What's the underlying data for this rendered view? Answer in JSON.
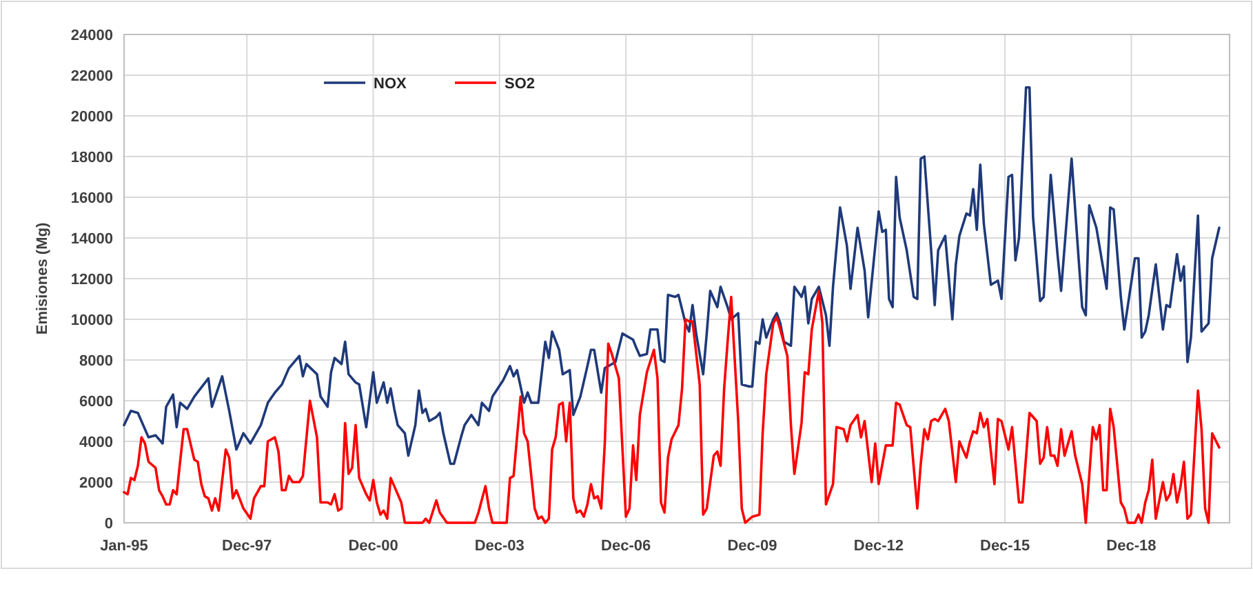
{
  "chart_data": {
    "type": "line",
    "ylabel": "Emisiones (Mg)",
    "xlim": [
      "1995-01",
      "2021-04"
    ],
    "ylim": [
      0,
      24000
    ],
    "xticks": [
      {
        "value": "1995-01",
        "label": "Jan-95"
      },
      {
        "value": "1997-12",
        "label": "Dec-97"
      },
      {
        "value": "2000-12",
        "label": "Dec-00"
      },
      {
        "value": "2003-12",
        "label": "Dec-03"
      },
      {
        "value": "2006-12",
        "label": "Dec-06"
      },
      {
        "value": "2009-12",
        "label": "Dec-09"
      },
      {
        "value": "2012-12",
        "label": "Dec-12"
      },
      {
        "value": "2015-12",
        "label": "Dec-15"
      },
      {
        "value": "2018-12",
        "label": "Dec-18"
      }
    ],
    "yticks": [
      0,
      2000,
      4000,
      6000,
      8000,
      10000,
      12000,
      14000,
      16000,
      18000,
      20000,
      22000,
      24000
    ],
    "grid": true,
    "legend": "top left",
    "marker": "none",
    "line_style": "solid",
    "series": [
      {
        "name": "NOX",
        "color": "#1f3a7a",
        "x": [
          "1995-01",
          "1995-03",
          "1995-05",
          "1995-08",
          "1995-10",
          "1995-12",
          "1996-01",
          "1996-03",
          "1996-04",
          "1996-05",
          "1996-07",
          "1996-09",
          "1997-01",
          "1997-02",
          "1997-05",
          "1997-07",
          "1997-09",
          "1997-11",
          "1998-01",
          "1998-04",
          "1998-06",
          "1998-08",
          "1998-10",
          "1998-12",
          "1999-03",
          "1999-04",
          "1999-05",
          "1999-08",
          "1999-09",
          "1999-11",
          "1999-12",
          "2000-01",
          "2000-03",
          "2000-04",
          "2000-05",
          "2000-07",
          "2000-08",
          "2000-10",
          "2000-12",
          "2001-01",
          "2001-03",
          "2001-04",
          "2001-05",
          "2001-06",
          "2001-07",
          "2001-09",
          "2001-10",
          "2001-12",
          "2002-01",
          "2002-02",
          "2002-03",
          "2002-04",
          "2002-06",
          "2002-07",
          "2002-08",
          "2002-10",
          "2002-11",
          "2003-01",
          "2003-02",
          "2003-04",
          "2003-06",
          "2003-07",
          "2003-09",
          "2003-10",
          "2004-01",
          "2004-03",
          "2004-04",
          "2004-05",
          "2004-07",
          "2004-08",
          "2004-09",
          "2004-11",
          "2005-01",
          "2005-02",
          "2005-03",
          "2005-05",
          "2005-06",
          "2005-08",
          "2005-09",
          "2005-11",
          "2006-01",
          "2006-02",
          "2006-03",
          "2006-05",
          "2006-06",
          "2006-09",
          "2006-11",
          "2007-02",
          "2007-03",
          "2007-04",
          "2007-06",
          "2007-07",
          "2007-09",
          "2007-10",
          "2007-11",
          "2007-12",
          "2008-02",
          "2008-03",
          "2008-05",
          "2008-06",
          "2008-07",
          "2008-08",
          "2008-10",
          "2008-11",
          "2008-12",
          "2009-02",
          "2009-03",
          "2009-05",
          "2009-06",
          "2009-08",
          "2009-09",
          "2009-11",
          "2009-12",
          "2010-01",
          "2010-02",
          "2010-03",
          "2010-04",
          "2010-06",
          "2010-07",
          "2010-08",
          "2010-09",
          "2010-11",
          "2010-12",
          "2011-02",
          "2011-03",
          "2011-04",
          "2011-05",
          "2011-07",
          "2011-09",
          "2011-10",
          "2011-11",
          "2012-01",
          "2012-03",
          "2012-04",
          "2012-06",
          "2012-08",
          "2012-09",
          "2012-12",
          "2013-01",
          "2013-02",
          "2013-03",
          "2013-04",
          "2013-05",
          "2013-06",
          "2013-08",
          "2013-10",
          "2013-11",
          "2013-12",
          "2014-01",
          "2014-03",
          "2014-04",
          "2014-05",
          "2014-07",
          "2014-09",
          "2014-10",
          "2014-11",
          "2015-01",
          "2015-02",
          "2015-03",
          "2015-04",
          "2015-05",
          "2015-06",
          "2015-08",
          "2015-10",
          "2015-11",
          "2016-01",
          "2016-02",
          "2016-03",
          "2016-04",
          "2016-06",
          "2016-07",
          "2016-08",
          "2016-10",
          "2016-11",
          "2017-01",
          "2017-03",
          "2017-04",
          "2017-07",
          "2017-09",
          "2017-10",
          "2017-11",
          "2017-12",
          "2018-02",
          "2018-05",
          "2018-06",
          "2018-07",
          "2018-09",
          "2018-10",
          "2019-01",
          "2019-02",
          "2019-03",
          "2019-04",
          "2019-05",
          "2019-07",
          "2019-09",
          "2019-10",
          "2019-11",
          "2020-01",
          "2020-02",
          "2020-03",
          "2020-04",
          "2020-05",
          "2020-07",
          "2020-08",
          "2020-10",
          "2020-11",
          "2021-01"
        ],
        "values": [
          4800,
          5500,
          5400,
          4200,
          4300,
          3900,
          5700,
          6300,
          4700,
          5900,
          5600,
          6200,
          7100,
          5700,
          7200,
          5500,
          3600,
          4400,
          3900,
          4800,
          5900,
          6400,
          6800,
          7600,
          8200,
          7200,
          7800,
          7300,
          6200,
          5700,
          7400,
          8100,
          7800,
          8900,
          7300,
          6900,
          6800,
          4700,
          7400,
          5900,
          6900,
          5900,
          6600,
          5600,
          4800,
          4400,
          3300,
          4800,
          6500,
          5400,
          5600,
          5000,
          5200,
          5400,
          4400,
          2900,
          2900,
          4200,
          4800,
          5300,
          4800,
          5900,
          5500,
          6200,
          7000,
          7700,
          7200,
          7500,
          5900,
          6400,
          5900,
          5900,
          8900,
          8100,
          9400,
          8500,
          7300,
          7500,
          5300,
          6200,
          7700,
          8500,
          8500,
          6400,
          7600,
          7900,
          9300,
          9000,
          8600,
          8200,
          8300,
          9500,
          9500,
          8000,
          7900,
          11200,
          11100,
          11200,
          9800,
          9400,
          10700,
          9300,
          7300,
          9300,
          11400,
          10600,
          11600,
          10600,
          10000,
          10300,
          6800,
          6700,
          6700,
          8900,
          8800,
          10000,
          9100,
          10000,
          10300,
          9800,
          8900,
          8700,
          11600,
          11100,
          11600,
          9800,
          11000,
          11600,
          10200,
          8700,
          11600,
          15500,
          13600,
          11500,
          14500,
          12400,
          10100,
          15300,
          14300,
          14400,
          11000,
          10600,
          17000,
          15000,
          13400,
          11100,
          11000,
          17900,
          18000,
          13400,
          10700,
          13400,
          14100,
          10000,
          12700,
          14100,
          15200,
          15100,
          16400,
          14400,
          17600,
          14700,
          11700,
          11900,
          11000,
          17000,
          17100,
          12900,
          14000,
          21400,
          21400,
          15000,
          10900,
          11100,
          17100,
          13200,
          11400,
          17900,
          12900,
          10600,
          10200,
          15600,
          14500,
          11500,
          15500,
          15400,
          11100,
          9500,
          13000,
          13000,
          9100,
          9400,
          10200,
          12700,
          9500,
          10700,
          10600,
          13200,
          11900,
          12600,
          7900,
          9100,
          15100,
          9400,
          9800,
          13000,
          14500
        ]
      },
      {
        "name": "SO2",
        "color": "#ff0000",
        "x": [
          "1995-01",
          "1995-02",
          "1995-03",
          "1995-04",
          "1995-05",
          "1995-06",
          "1995-07",
          "1995-08",
          "1995-10",
          "1995-11",
          "1995-12",
          "1996-01",
          "1996-02",
          "1996-03",
          "1996-04",
          "1996-05",
          "1996-06",
          "1996-07",
          "1996-09",
          "1996-10",
          "1996-11",
          "1996-12",
          "1997-01",
          "1997-02",
          "1997-03",
          "1997-04",
          "1997-06",
          "1997-07",
          "1997-08",
          "1997-09",
          "1997-11",
          "1998-01",
          "1998-02",
          "1998-04",
          "1998-05",
          "1998-06",
          "1998-08",
          "1998-09",
          "1998-10",
          "1998-11",
          "1998-12",
          "1999-01",
          "1999-03",
          "1999-04",
          "1999-06",
          "1999-08",
          "1999-09",
          "1999-11",
          "1999-12",
          "2000-01",
          "2000-02",
          "2000-03",
          "2000-04",
          "2000-05",
          "2000-06",
          "2000-07",
          "2000-08",
          "2000-10",
          "2000-11",
          "2000-12",
          "2001-01",
          "2001-02",
          "2001-03",
          "2001-04",
          "2001-05",
          "2001-06",
          "2001-08",
          "2001-09",
          "2002-02",
          "2002-03",
          "2002-04",
          "2002-06",
          "2002-07",
          "2002-09",
          "2003-05",
          "2003-06",
          "2003-08",
          "2003-09",
          "2003-10",
          "2004-02",
          "2004-03",
          "2004-04",
          "2004-06",
          "2004-07",
          "2004-08",
          "2004-10",
          "2004-11",
          "2004-12",
          "2005-01",
          "2005-02",
          "2005-03",
          "2005-04",
          "2005-05",
          "2005-06",
          "2005-07",
          "2005-08",
          "2005-09",
          "2005-10",
          "2005-11",
          "2005-12",
          "2006-01",
          "2006-02",
          "2006-03",
          "2006-04",
          "2006-05",
          "2006-06",
          "2006-07",
          "2006-08",
          "2006-10",
          "2006-12",
          "2007-01",
          "2007-02",
          "2007-03",
          "2007-04",
          "2007-06",
          "2007-08",
          "2007-09",
          "2007-10",
          "2007-11",
          "2007-12",
          "2008-01",
          "2008-03",
          "2008-04",
          "2008-05",
          "2008-06",
          "2008-07",
          "2008-09",
          "2008-10",
          "2008-11",
          "2009-01",
          "2009-02",
          "2009-03",
          "2009-04",
          "2009-05",
          "2009-06",
          "2009-08",
          "2009-09",
          "2009-10",
          "2009-12",
          "2010-02",
          "2010-03",
          "2010-04",
          "2010-06",
          "2010-07",
          "2010-08",
          "2010-10",
          "2010-11",
          "2010-12",
          "2011-02",
          "2011-03",
          "2011-04",
          "2011-05",
          "2011-07",
          "2011-08",
          "2011-09",
          "2011-11",
          "2011-12",
          "2012-02",
          "2012-03",
          "2012-04",
          "2012-06",
          "2012-07",
          "2012-08",
          "2012-10",
          "2012-11",
          "2012-12",
          "2013-02",
          "2013-04",
          "2013-05",
          "2013-06",
          "2013-08",
          "2013-09",
          "2013-11",
          "2013-12",
          "2014-01",
          "2014-02",
          "2014-03",
          "2014-04",
          "2014-05",
          "2014-07",
          "2014-08",
          "2014-10",
          "2014-11",
          "2015-01",
          "2015-02",
          "2015-03",
          "2015-04",
          "2015-05",
          "2015-06",
          "2015-07",
          "2015-09",
          "2015-10",
          "2015-11",
          "2016-01",
          "2016-02",
          "2016-04",
          "2016-05",
          "2016-07",
          "2016-09",
          "2016-10",
          "2016-11",
          "2016-12",
          "2017-01",
          "2017-02",
          "2017-03",
          "2017-04",
          "2017-05",
          "2017-07",
          "2017-08",
          "2017-10",
          "2017-11",
          "2018-01",
          "2018-02",
          "2018-03",
          "2018-04",
          "2018-05",
          "2018-06",
          "2018-07",
          "2018-09",
          "2018-10",
          "2018-11",
          "2019-01",
          "2019-02",
          "2019-03",
          "2019-04",
          "2019-05",
          "2019-06",
          "2019-07",
          "2019-09",
          "2019-10",
          "2019-11",
          "2019-12",
          "2020-01",
          "2020-02",
          "2020-03",
          "2020-04",
          "2020-05",
          "2020-07",
          "2020-08",
          "2020-09",
          "2020-10",
          "2020-11",
          "2021-01"
        ],
        "values": [
          1500,
          1400,
          2200,
          2100,
          2800,
          4200,
          3900,
          3000,
          2700,
          1600,
          1300,
          900,
          900,
          1600,
          1400,
          3000,
          4600,
          4600,
          3100,
          3000,
          1900,
          1300,
          1200,
          600,
          1200,
          600,
          3600,
          3200,
          1200,
          1600,
          700,
          200,
          1200,
          1800,
          1800,
          4000,
          4200,
          3500,
          1600,
          1600,
          2300,
          2000,
          2000,
          2300,
          6000,
          4200,
          1000,
          1000,
          900,
          1400,
          600,
          700,
          4900,
          2400,
          2700,
          4800,
          2200,
          1400,
          1100,
          2100,
          1000,
          400,
          600,
          200,
          2200,
          1800,
          1000,
          0,
          0,
          200,
          0,
          1100,
          500,
          0,
          0,
          500,
          1800,
          700,
          0,
          0,
          2200,
          2300,
          6200,
          4400,
          4000,
          700,
          200,
          300,
          0,
          200,
          3600,
          4200,
          5800,
          5900,
          4000,
          5900,
          1200,
          500,
          600,
          300,
          900,
          1900,
          1200,
          1300,
          700,
          3900,
          8800,
          8300,
          7100,
          300,
          700,
          3800,
          2100,
          5300,
          7400,
          8500,
          7100,
          1000,
          500,
          3200,
          4100,
          4800,
          6600,
          10000,
          9900,
          9900,
          6800,
          400,
          700,
          3300,
          3500,
          2800,
          6600,
          8900,
          11100,
          5000,
          700,
          0,
          300,
          400,
          4400,
          7300,
          9800,
          10100,
          9500,
          8200,
          4800,
          2400,
          4900,
          7400,
          7300,
          9500,
          11400,
          9800,
          900,
          1900,
          4700,
          4600,
          4000,
          4800,
          5300,
          4200,
          5000,
          2000,
          3900,
          1900,
          3800,
          3800,
          5900,
          5800,
          4800,
          4700,
          700,
          2900,
          4600,
          4100,
          5000,
          5100,
          5000,
          5600,
          5000,
          2000,
          4000,
          3200,
          4000,
          4500,
          4400,
          5400,
          4700,
          5100,
          1900,
          5100,
          5000,
          3600,
          4700,
          1000,
          1000,
          5400,
          5000,
          2900,
          3200,
          4700,
          3300,
          3300,
          2800,
          4600,
          3300,
          4500,
          3300,
          1900,
          0,
          4700,
          4100,
          4800,
          1600,
          1600,
          5600,
          4700,
          1000,
          700,
          0,
          0,
          400,
          0,
          1000,
          1600,
          3100,
          200,
          2000,
          1100,
          1400,
          2400,
          1000,
          1800,
          3000,
          200,
          400,
          6500,
          4600,
          700,
          0,
          4400,
          3700
        ]
      }
    ]
  }
}
